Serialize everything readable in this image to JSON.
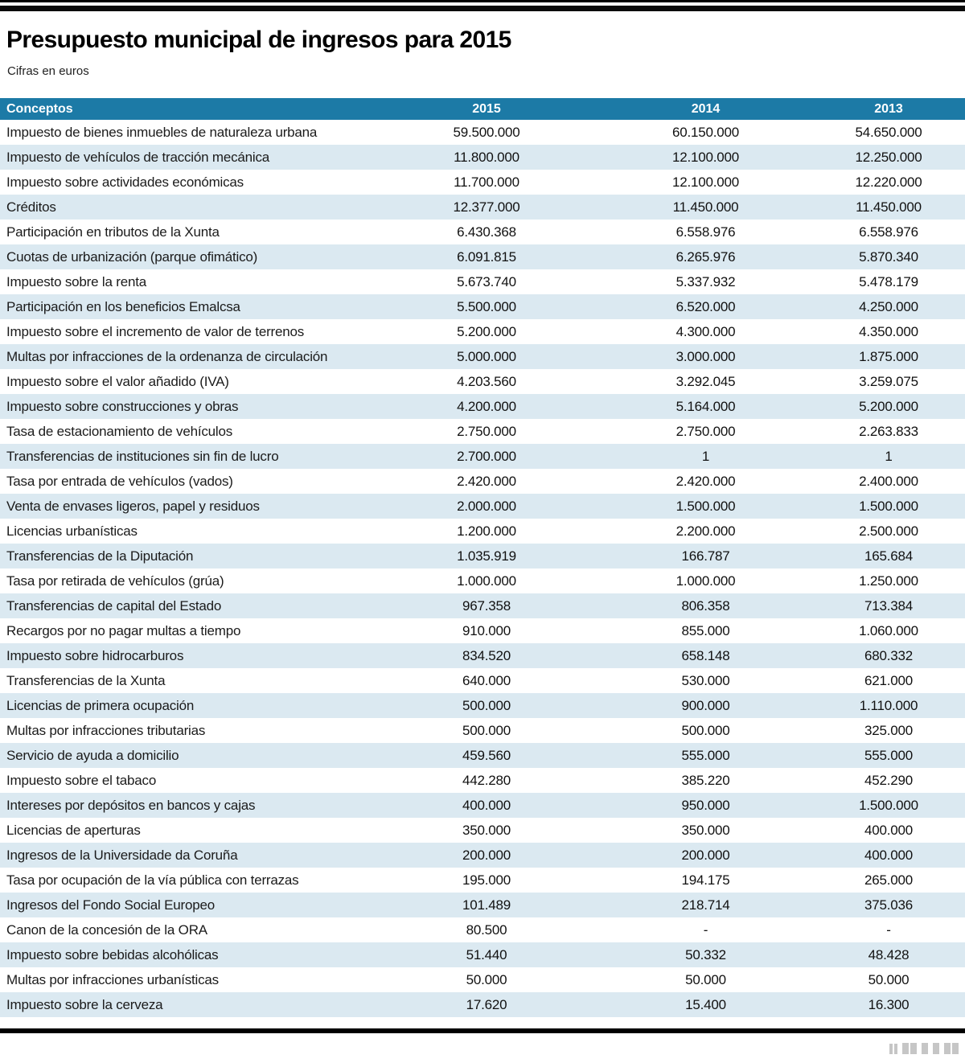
{
  "title": "Presupuesto municipal de ingresos para 2015",
  "subtitle": "Cifras en euros",
  "colors": {
    "header_bar": "#1c7aa6",
    "row_stripe": "#dbe9f1",
    "top_rule": "#000000",
    "bottom_rule": "#000000",
    "logo_gray": "#c6c6c6"
  },
  "chart_data": {
    "type": "table",
    "title": "Presupuesto municipal de ingresos para 2015",
    "subtitle": "Cifras en euros",
    "units": "euros",
    "columns": [
      "Conceptos",
      "2015",
      "2014",
      "2013"
    ],
    "rows": [
      [
        "Impuesto de bienes inmuebles de naturaleza urbana",
        "59.500.000",
        "60.150.000",
        "54.650.000"
      ],
      [
        "Impuesto de vehículos de tracción mecánica",
        "11.800.000",
        "12.100.000",
        "12.250.000"
      ],
      [
        "Impuesto sobre actividades económicas",
        "11.700.000",
        "12.100.000",
        "12.220.000"
      ],
      [
        "Créditos",
        "12.377.000",
        "11.450.000",
        "11.450.000"
      ],
      [
        "Participación en tributos de la Xunta",
        "6.430.368",
        "6.558.976",
        "6.558.976"
      ],
      [
        "Cuotas de urbanización (parque ofimático)",
        "6.091.815",
        "6.265.976",
        "5.870.340"
      ],
      [
        "Impuesto sobre la renta",
        "5.673.740",
        "5.337.932",
        "5.478.179"
      ],
      [
        "Participación en los beneficios Emalcsa",
        "5.500.000",
        "6.520.000",
        "4.250.000"
      ],
      [
        "Impuesto sobre el incremento de valor de terrenos",
        "5.200.000",
        "4.300.000",
        "4.350.000"
      ],
      [
        "Multas por infracciones de la ordenanza de circulación",
        "5.000.000",
        "3.000.000",
        "1.875.000"
      ],
      [
        "Impuesto sobre el valor añadido (IVA)",
        "4.203.560",
        "3.292.045",
        "3.259.075"
      ],
      [
        "Impuesto sobre construcciones y obras",
        "4.200.000",
        "5.164.000",
        "5.200.000"
      ],
      [
        "Tasa de estacionamiento de vehículos",
        "2.750.000",
        "2.750.000",
        "2.263.833"
      ],
      [
        "Transferencias de instituciones sin fin de lucro",
        "2.700.000",
        "1",
        "1"
      ],
      [
        "Tasa por entrada de vehículos (vados)",
        "2.420.000",
        "2.420.000",
        "2.400.000"
      ],
      [
        "Venta de envases ligeros, papel y residuos",
        "2.000.000",
        "1.500.000",
        "1.500.000"
      ],
      [
        "Licencias urbanísticas",
        "1.200.000",
        "2.200.000",
        "2.500.000"
      ],
      [
        "Transferencias de la Diputación",
        "1.035.919",
        "166.787",
        "165.684"
      ],
      [
        "Tasa por retirada de vehículos (grúa)",
        "1.000.000",
        "1.000.000",
        "1.250.000"
      ],
      [
        "Transferencias de capital del Estado",
        "967.358",
        "806.358",
        "713.384"
      ],
      [
        "Recargos por no pagar multas a tiempo",
        "910.000",
        "855.000",
        "1.060.000"
      ],
      [
        "Impuesto sobre hidrocarburos",
        "834.520",
        "658.148",
        "680.332"
      ],
      [
        "Transferencias de la Xunta",
        "640.000",
        "530.000",
        "621.000"
      ],
      [
        "Licencias de primera ocupación",
        "500.000",
        "900.000",
        "1.110.000"
      ],
      [
        "Multas por infracciones tributarias",
        "500.000",
        "500.000",
        "325.000"
      ],
      [
        "Servicio de ayuda a domicilio",
        "459.560",
        "555.000",
        "555.000"
      ],
      [
        "Impuesto sobre el tabaco",
        "442.280",
        "385.220",
        "452.290"
      ],
      [
        "Intereses por depósitos en bancos y cajas",
        "400.000",
        "950.000",
        "1.500.000"
      ],
      [
        "Licencias de aperturas",
        "350.000",
        "350.000",
        "400.000"
      ],
      [
        "Ingresos de la Universidade da Coruña",
        "200.000",
        "200.000",
        "400.000"
      ],
      [
        "Tasa por ocupación de la vía pública con terrazas",
        "195.000",
        "194.175",
        "265.000"
      ],
      [
        "Ingresos del Fondo Social Europeo",
        "101.489",
        "218.714",
        "375.036"
      ],
      [
        "Canon de la concesión de la ORA",
        "80.500",
        "-",
        "-"
      ],
      [
        "Impuesto sobre bebidas alcohólicas",
        "51.440",
        "50.332",
        "48.428"
      ],
      [
        "Multas por infracciones urbanísticas",
        "50.000",
        "50.000",
        "50.000"
      ],
      [
        "Impuesto sobre la cerveza",
        "17.620",
        "15.400",
        "16.300"
      ]
    ]
  }
}
